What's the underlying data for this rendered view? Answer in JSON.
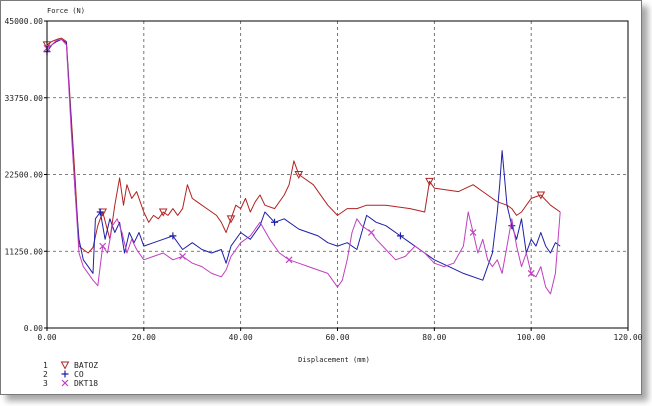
{
  "chart_data": {
    "type": "line",
    "title": "",
    "xlabel": "Displacement (mm)",
    "ylabel": "Force (N)",
    "xlim": [
      0,
      120
    ],
    "ylim": [
      0,
      45000
    ],
    "xticks": [
      "0.00",
      "20.00",
      "40.00",
      "60.00",
      "80.00",
      "100.00",
      "120.00"
    ],
    "yticks": [
      "0.00",
      "11250.00",
      "22500.00",
      "33750.00",
      "45000.00"
    ],
    "grid": true,
    "legend_position": "bottom-left",
    "series": [
      {
        "index": "1",
        "name": "BATOZ",
        "color": "#b22222",
        "marker": "triangle-down",
        "points": [
          [
            0,
            41500
          ],
          [
            1,
            42000
          ],
          [
            2,
            42300
          ],
          [
            3,
            42500
          ],
          [
            4,
            42000
          ],
          [
            5,
            31000
          ],
          [
            5.8,
            22000
          ],
          [
            6.6,
            12000
          ],
          [
            7.5,
            11500
          ],
          [
            8.5,
            11000
          ],
          [
            9.5,
            11800
          ],
          [
            10.5,
            15000
          ],
          [
            11.5,
            17000
          ],
          [
            13,
            13000
          ],
          [
            14,
            18000
          ],
          [
            15,
            22000
          ],
          [
            15.8,
            18000
          ],
          [
            16.5,
            21000
          ],
          [
            17.5,
            19000
          ],
          [
            18.5,
            20000
          ],
          [
            20,
            17000
          ],
          [
            21,
            15500
          ],
          [
            22,
            16500
          ],
          [
            23,
            16000
          ],
          [
            24,
            17000
          ],
          [
            25,
            16500
          ],
          [
            26,
            17500
          ],
          [
            27,
            16500
          ],
          [
            28,
            17500
          ],
          [
            29,
            21000
          ],
          [
            30,
            19000
          ],
          [
            31,
            18500
          ],
          [
            33,
            17500
          ],
          [
            35,
            16500
          ],
          [
            36,
            15500
          ],
          [
            37,
            14000
          ],
          [
            38,
            16000
          ],
          [
            39,
            18000
          ],
          [
            40,
            17500
          ],
          [
            41,
            19000
          ],
          [
            42,
            17000
          ],
          [
            43,
            18500
          ],
          [
            44,
            19500
          ],
          [
            45,
            18000
          ],
          [
            47,
            17500
          ],
          [
            49,
            19500
          ],
          [
            50,
            21000
          ],
          [
            51,
            24500
          ],
          [
            52,
            22500
          ],
          [
            53,
            22000
          ],
          [
            55,
            21000
          ],
          [
            57,
            19000
          ],
          [
            58,
            18000
          ],
          [
            60,
            16500
          ],
          [
            62,
            17500
          ],
          [
            64,
            17500
          ],
          [
            66,
            18000
          ],
          [
            70,
            18000
          ],
          [
            75,
            17500
          ],
          [
            78,
            17000
          ],
          [
            79,
            21500
          ],
          [
            80,
            20500
          ],
          [
            85,
            20000
          ],
          [
            88,
            21000
          ],
          [
            90,
            20000
          ],
          [
            92,
            19000
          ],
          [
            93,
            18500
          ],
          [
            95,
            18000
          ],
          [
            96,
            17500
          ],
          [
            97,
            16500
          ],
          [
            98,
            17000
          ],
          [
            100,
            19000
          ],
          [
            102,
            19500
          ],
          [
            104,
            18000
          ],
          [
            106,
            17000
          ]
        ]
      },
      {
        "index": "2",
        "name": "CO",
        "color": "#1f1fa8",
        "marker": "plus",
        "points": [
          [
            0,
            40500
          ],
          [
            1,
            41500
          ],
          [
            2,
            42000
          ],
          [
            3,
            42300
          ],
          [
            4,
            41800
          ],
          [
            5,
            30000
          ],
          [
            5.8,
            20000
          ],
          [
            6.6,
            13000
          ],
          [
            7.5,
            10000
          ],
          [
            8.5,
            9000
          ],
          [
            9.5,
            8000
          ],
          [
            10,
            16000
          ],
          [
            11,
            17000
          ],
          [
            12,
            13000
          ],
          [
            13,
            16000
          ],
          [
            14,
            14000
          ],
          [
            15,
            15500
          ],
          [
            16,
            11000
          ],
          [
            17,
            14000
          ],
          [
            18,
            12500
          ],
          [
            19,
            14000
          ],
          [
            20,
            12000
          ],
          [
            22,
            12500
          ],
          [
            24,
            13000
          ],
          [
            26,
            13500
          ],
          [
            28,
            11500
          ],
          [
            30,
            12500
          ],
          [
            32,
            11500
          ],
          [
            34,
            11000
          ],
          [
            36,
            11500
          ],
          [
            37,
            9500
          ],
          [
            38,
            12000
          ],
          [
            40,
            14000
          ],
          [
            42,
            13000
          ],
          [
            44,
            15000
          ],
          [
            45,
            17000
          ],
          [
            47,
            15500
          ],
          [
            49,
            16000
          ],
          [
            52,
            14500
          ],
          [
            56,
            13500
          ],
          [
            58,
            12500
          ],
          [
            60,
            12000
          ],
          [
            62,
            12500
          ],
          [
            64,
            11500
          ],
          [
            65,
            14000
          ],
          [
            66,
            16500
          ],
          [
            68,
            15500
          ],
          [
            70,
            15000
          ],
          [
            73,
            13500
          ],
          [
            75,
            12500
          ],
          [
            78,
            11000
          ],
          [
            80,
            10000
          ],
          [
            83,
            9000
          ],
          [
            86,
            8000
          ],
          [
            90,
            7000
          ],
          [
            92,
            11000
          ],
          [
            93,
            17000
          ],
          [
            93.5,
            21000
          ],
          [
            94,
            26000
          ],
          [
            95,
            18000
          ],
          [
            96,
            15000
          ],
          [
            97,
            13000
          ],
          [
            98,
            16000
          ],
          [
            99,
            11000
          ],
          [
            100,
            13000
          ],
          [
            101,
            12000
          ],
          [
            102,
            14000
          ],
          [
            103,
            12000
          ],
          [
            104,
            11000
          ],
          [
            105,
            12500
          ],
          [
            106,
            12000
          ]
        ]
      },
      {
        "index": "3",
        "name": "DKT18",
        "color": "#c040c0",
        "marker": "x",
        "points": [
          [
            0,
            41000
          ],
          [
            1,
            41500
          ],
          [
            2,
            42200
          ],
          [
            3,
            42300
          ],
          [
            4,
            41500
          ],
          [
            5,
            29000
          ],
          [
            5.8,
            20000
          ],
          [
            6.6,
            11000
          ],
          [
            7.5,
            9000
          ],
          [
            8.5,
            8000
          ],
          [
            9.5,
            7000
          ],
          [
            10.5,
            6200
          ],
          [
            11.5,
            12000
          ],
          [
            12.5,
            11000
          ],
          [
            13.5,
            15000
          ],
          [
            14.5,
            16000
          ],
          [
            15.5,
            14000
          ],
          [
            16.5,
            11000
          ],
          [
            17.5,
            13000
          ],
          [
            18.5,
            11500
          ],
          [
            20,
            10000
          ],
          [
            22,
            10500
          ],
          [
            24,
            11000
          ],
          [
            26,
            10000
          ],
          [
            28,
            10500
          ],
          [
            30,
            9500
          ],
          [
            32,
            9000
          ],
          [
            34,
            8000
          ],
          [
            36,
            7500
          ],
          [
            37,
            8500
          ],
          [
            38,
            10500
          ],
          [
            40,
            12500
          ],
          [
            42,
            13500
          ],
          [
            44,
            15500
          ],
          [
            46,
            13000
          ],
          [
            48,
            11000
          ],
          [
            50,
            10000
          ],
          [
            52,
            9500
          ],
          [
            54,
            9000
          ],
          [
            56,
            8500
          ],
          [
            58,
            8000
          ],
          [
            60,
            6000
          ],
          [
            61,
            7000
          ],
          [
            62,
            10000
          ],
          [
            63,
            14000
          ],
          [
            64,
            16000
          ],
          [
            65,
            15000
          ],
          [
            66,
            14500
          ],
          [
            67,
            14000
          ],
          [
            68,
            13000
          ],
          [
            70,
            11500
          ],
          [
            72,
            10000
          ],
          [
            74,
            10500
          ],
          [
            76,
            12000
          ],
          [
            78,
            11000
          ],
          [
            80,
            9500
          ],
          [
            82,
            9000
          ],
          [
            84,
            9500
          ],
          [
            86,
            12000
          ],
          [
            87,
            17000
          ],
          [
            88,
            14000
          ],
          [
            89,
            11000
          ],
          [
            90,
            13000
          ],
          [
            91,
            10000
          ],
          [
            92,
            9000
          ],
          [
            93,
            10000
          ],
          [
            94,
            8000
          ],
          [
            95,
            12000
          ],
          [
            96,
            16000
          ],
          [
            97,
            12000
          ],
          [
            98,
            9000
          ],
          [
            99,
            11000
          ],
          [
            100,
            8000
          ],
          [
            101,
            7500
          ],
          [
            102,
            9000
          ],
          [
            103,
            6000
          ],
          [
            104,
            5000
          ],
          [
            105,
            8000
          ],
          [
            106,
            17000
          ]
        ]
      }
    ]
  }
}
